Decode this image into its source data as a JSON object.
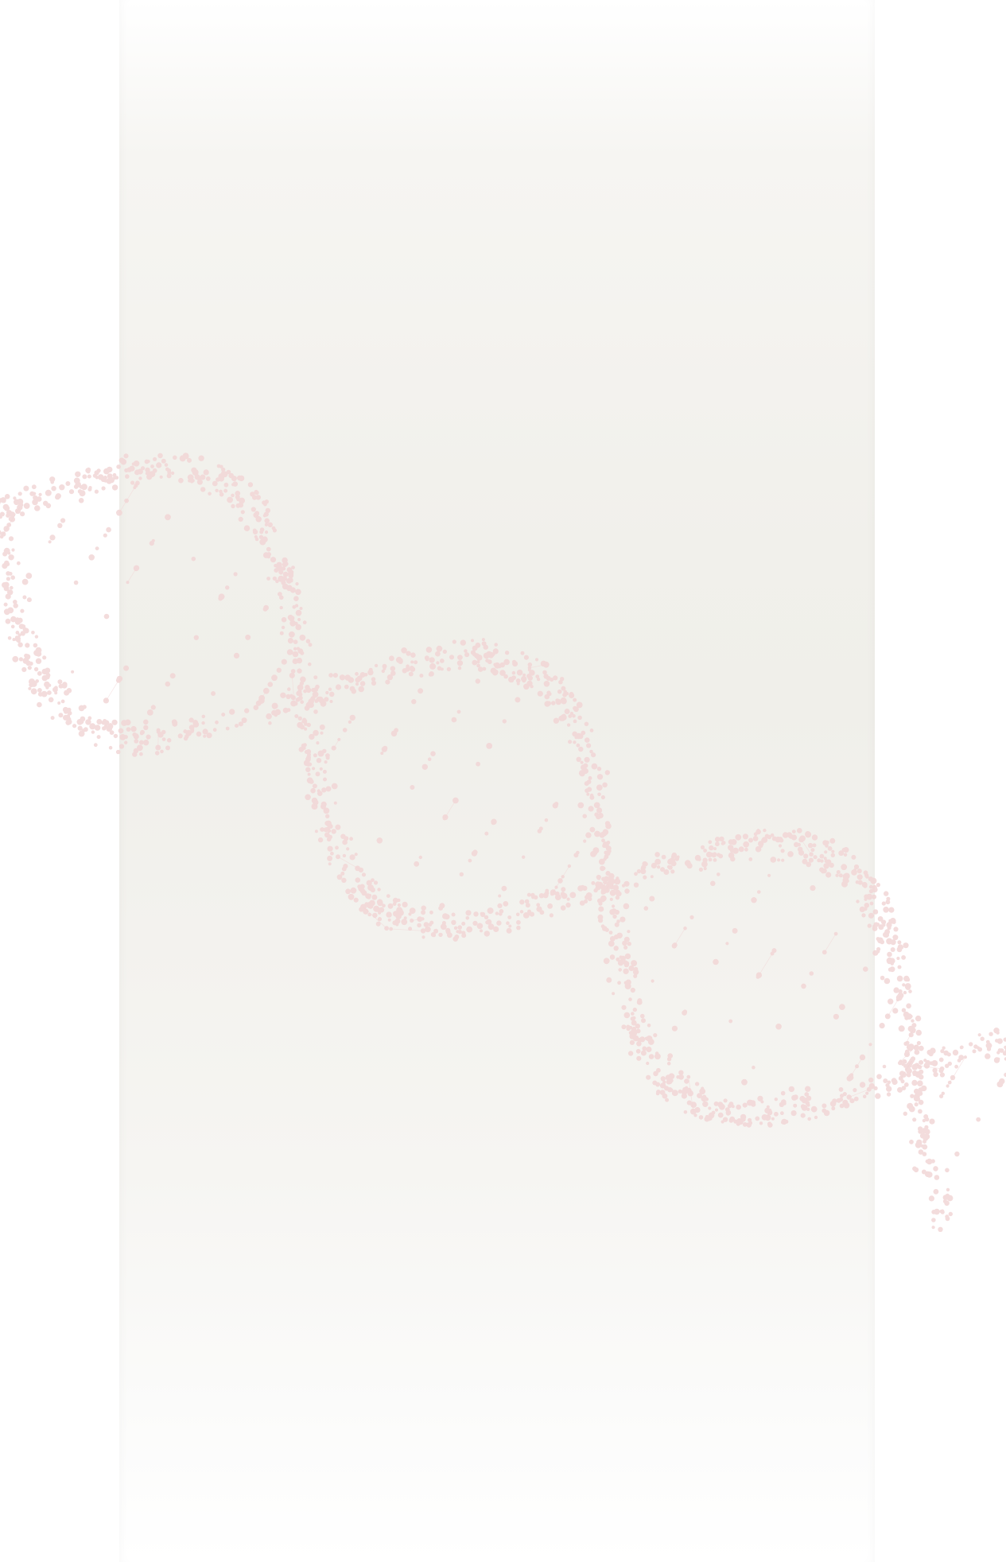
{
  "background": {
    "page_color": "#ffffff",
    "panel_color": "#f1f0eb",
    "decoration": "dna-helix-graphic",
    "decoration_color": "#f2d6d6"
  }
}
